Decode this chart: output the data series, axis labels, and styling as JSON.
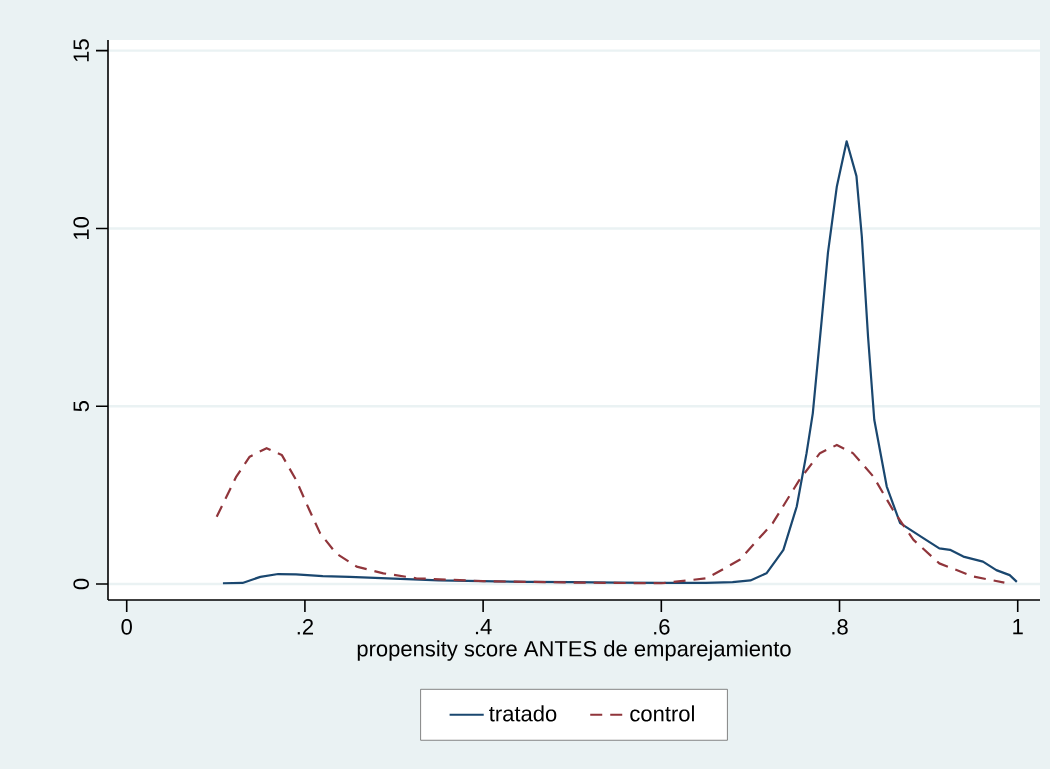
{
  "chart_data": {
    "type": "line",
    "xlabel": "propensity score ANTES de emparejamiento",
    "xlim": [
      -0.021,
      1.025
    ],
    "ylim": [
      -0.45,
      15.3
    ],
    "xticks": [
      {
        "value": 0,
        "label": "0"
      },
      {
        "value": 0.2,
        "label": ".2"
      },
      {
        "value": 0.4,
        "label": ".4"
      },
      {
        "value": 0.6,
        "label": ".6"
      },
      {
        "value": 0.8,
        "label": ".8"
      },
      {
        "value": 1,
        "label": "1"
      }
    ],
    "yticks": [
      0,
      5,
      10,
      15
    ],
    "grid": "y",
    "legend": "bottom",
    "marker": "none",
    "series": [
      {
        "name": "tratado",
        "color": "#1a476f",
        "line_style": "solid",
        "x": [
          0.108,
          0.13,
          0.15,
          0.17,
          0.19,
          0.22,
          0.25,
          0.3,
          0.35,
          0.4,
          0.45,
          0.5,
          0.55,
          0.6,
          0.65,
          0.68,
          0.7,
          0.718,
          0.729,
          0.737,
          0.752,
          0.763,
          0.77,
          0.78,
          0.787,
          0.797,
          0.808,
          0.819,
          0.825,
          0.832,
          0.839,
          0.853,
          0.868,
          0.894,
          0.912,
          0.924,
          0.939,
          0.961,
          0.976,
          0.991,
          0.999
        ],
        "values": [
          0.02,
          0.03,
          0.2,
          0.28,
          0.27,
          0.22,
          0.2,
          0.15,
          0.1,
          0.08,
          0.06,
          0.05,
          0.04,
          0.03,
          0.03,
          0.05,
          0.1,
          0.3,
          0.68,
          0.96,
          2.18,
          3.68,
          4.8,
          7.43,
          9.31,
          11.18,
          12.45,
          11.47,
          9.78,
          6.96,
          4.62,
          2.74,
          1.71,
          1.29,
          1.0,
          0.96,
          0.77,
          0.63,
          0.39,
          0.25,
          0.06
        ]
      },
      {
        "name": "control",
        "color": "#90353b",
        "line_style": "dashed",
        "x": [
          0.101,
          0.123,
          0.138,
          0.157,
          0.174,
          0.19,
          0.205,
          0.217,
          0.235,
          0.258,
          0.288,
          0.325,
          0.4,
          0.5,
          0.6,
          0.651,
          0.688,
          0.725,
          0.755,
          0.778,
          0.797,
          0.815,
          0.838,
          0.86,
          0.883,
          0.912,
          0.95,
          0.985
        ],
        "values": [
          1.89,
          3.02,
          3.58,
          3.82,
          3.63,
          2.93,
          2.08,
          1.43,
          0.86,
          0.49,
          0.3,
          0.16,
          0.08,
          0.04,
          0.02,
          0.16,
          0.68,
          1.71,
          2.93,
          3.68,
          3.91,
          3.68,
          3.02,
          2.08,
          1.24,
          0.58,
          0.21,
          0.04
        ]
      }
    ]
  }
}
